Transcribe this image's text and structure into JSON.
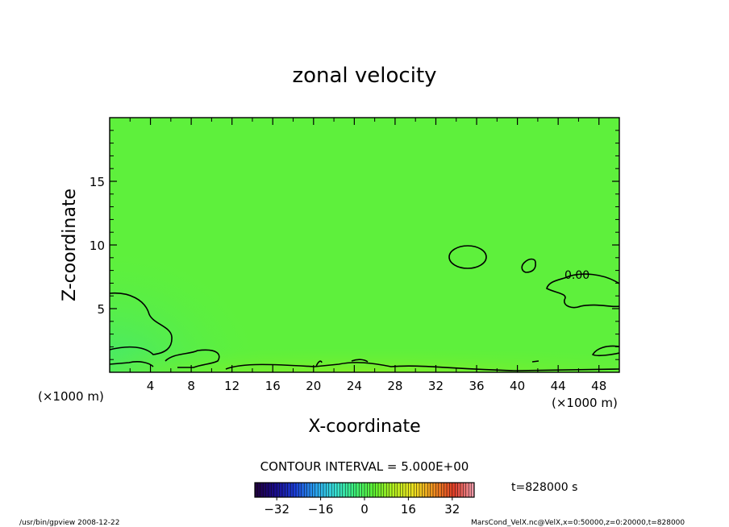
{
  "chart_data": {
    "type": "heatmap",
    "title": "zonal velocity",
    "xlabel": "X-coordinate",
    "ylabel": "Z-coordinate",
    "x_unit": "(×1000 m)",
    "y_unit": "(×1000 m)",
    "xlim": [
      0,
      50
    ],
    "ylim": [
      0,
      20
    ],
    "x_ticks": [
      4,
      8,
      12,
      16,
      20,
      24,
      28,
      32,
      36,
      40,
      44,
      48
    ],
    "y_ticks": [
      5,
      10,
      15
    ],
    "contour_interval_label": "CONTOUR INTERVAL = 5.000E+00",
    "contour_label": "0.00",
    "time_label": "t=828000 s",
    "colorbar": {
      "min": -40,
      "max": 40,
      "ticks": [
        -32,
        -16,
        0,
        16,
        32
      ],
      "colormap": [
        "#20003a",
        "#1a0a8a",
        "#1a3cd6",
        "#2aa0f0",
        "#38e0d8",
        "#3cf07a",
        "#60f030",
        "#b8f020",
        "#f0e020",
        "#f08c20",
        "#e03c28",
        "#f0a0b0"
      ]
    },
    "field_color": "#5ef03c"
  },
  "footer": {
    "left": "/usr/bin/gpview   2008-12-22",
    "right": "MarsCond_VelX.nc@VelX,x=0:50000,z=0:20000,t=828000"
  }
}
